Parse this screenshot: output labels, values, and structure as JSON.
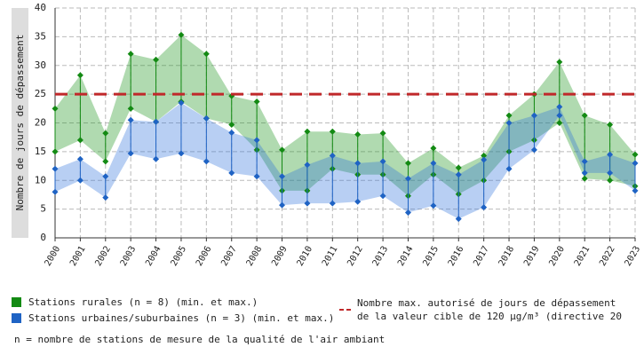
{
  "chart_data": {
    "type": "range-area",
    "y_label": "Nombre de jours de dépassement",
    "categories": [
      "2000",
      "2001",
      "2002",
      "2003",
      "2004",
      "2005",
      "2006",
      "2007",
      "2008",
      "2009",
      "2010",
      "2011",
      "2012",
      "2013",
      "2014",
      "2015",
      "2016",
      "2017",
      "2018",
      "2019",
      "2020",
      "2021",
      "2022",
      "2023"
    ],
    "series": [
      {
        "name": "Stations rurales (n = 8) (min. et max.)",
        "color": "#138a13",
        "fill": "rgba(30,150,30,0.35)",
        "max": [
          22.5,
          28.3,
          18.2,
          32,
          31,
          35.3,
          32,
          24.7,
          23.7,
          15.3,
          18.5,
          18.5,
          18,
          18.2,
          13,
          15.6,
          12.2,
          14.3,
          21.3,
          25,
          30.6,
          21.3,
          19.7,
          14.5
        ],
        "min": [
          15,
          17,
          13.3,
          22.5,
          20.2,
          23.7,
          20.8,
          19.7,
          15.3,
          8.2,
          8.2,
          12,
          11,
          11,
          7.3,
          11,
          7.6,
          10,
          15,
          17,
          20,
          10.3,
          10,
          9
        ]
      },
      {
        "name": "Stations urbaines/suburbaines (n = 3) (min. et max.)",
        "color": "#1f63c4",
        "fill": "rgba(40,110,220,0.33)",
        "max": [
          12,
          13.7,
          10.7,
          20.5,
          20.2,
          23.5,
          20.8,
          18.3,
          17,
          10.7,
          12.7,
          14.3,
          13,
          13.3,
          10.3,
          13,
          11,
          13.6,
          20,
          21.3,
          22.8,
          13.3,
          14.5,
          13
        ],
        "min": [
          8,
          10,
          7,
          14.7,
          13.7,
          14.7,
          13.3,
          11.3,
          10.7,
          5.7,
          6,
          6,
          6.3,
          7.3,
          4.4,
          5.6,
          3.3,
          5.3,
          12,
          15.3,
          21.3,
          11.3,
          11.3,
          8.2
        ]
      }
    ],
    "threshold": {
      "value": 25,
      "color": "#c0282a",
      "label": [
        "Nombre max. autorisé de jours de dépassement",
        "de la valeur cible de 120 µg/m³ (directive 20"
      ]
    },
    "ylim": [
      0,
      40
    ],
    "yticks": [
      0,
      5,
      10,
      15,
      20,
      25,
      30,
      35,
      40
    ],
    "grid": true,
    "footnote": "n = nombre de stations de mesure de la qualité de l'air ambiant"
  }
}
